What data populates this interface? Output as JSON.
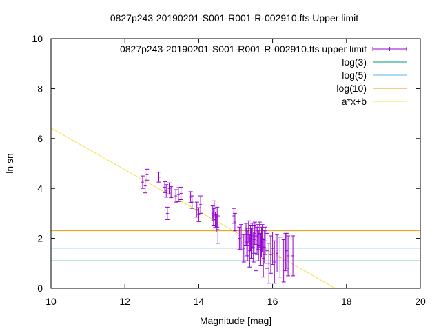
{
  "chart_data": {
    "type": "scatter",
    "title": "0827p243-20190201-S001-R001-R-002910.fts Upper limit",
    "xlabel": "Magnitude [mag]",
    "ylabel": "ln sn",
    "xlim": [
      10,
      20
    ],
    "ylim": [
      0,
      10
    ],
    "xticks": [
      "10",
      "12",
      "14",
      "16",
      "18",
      "20"
    ],
    "yticks": [
      "0",
      "2",
      "4",
      "6",
      "8",
      "10"
    ],
    "grid": false,
    "legend_position": "top-right",
    "colors": {
      "points": "#9400d3",
      "log3": "#009e73",
      "log5": "#56b4e9",
      "log10": "#e69f00",
      "fit": "#f0e442"
    },
    "series": [
      {
        "name": "0827p243-20190201-S001-R001-R-002910.fts upper limit",
        "kind": "errorbar",
        "points": [
          {
            "x": 12.48,
            "y": 4.25,
            "err": 0.25
          },
          {
            "x": 12.55,
            "y": 4.1,
            "err": 0.28
          },
          {
            "x": 12.6,
            "y": 4.55,
            "err": 0.22
          },
          {
            "x": 12.92,
            "y": 4.45,
            "err": 0.2
          },
          {
            "x": 13.08,
            "y": 4.05,
            "err": 0.22
          },
          {
            "x": 13.12,
            "y": 3.9,
            "err": 0.25
          },
          {
            "x": 13.15,
            "y": 3.0,
            "err": 0.25
          },
          {
            "x": 13.2,
            "y": 4.0,
            "err": 0.22
          },
          {
            "x": 13.25,
            "y": 3.85,
            "err": 0.22
          },
          {
            "x": 13.38,
            "y": 3.7,
            "err": 0.25
          },
          {
            "x": 13.45,
            "y": 3.75,
            "err": 0.28
          },
          {
            "x": 13.52,
            "y": 3.8,
            "err": 0.25
          },
          {
            "x": 13.78,
            "y": 3.65,
            "err": 0.22
          },
          {
            "x": 13.82,
            "y": 3.45,
            "err": 0.25
          },
          {
            "x": 13.95,
            "y": 3.15,
            "err": 0.3
          },
          {
            "x": 14.0,
            "y": 2.95,
            "err": 0.28
          },
          {
            "x": 14.05,
            "y": 3.35,
            "err": 0.35
          },
          {
            "x": 14.38,
            "y": 3.0,
            "err": 0.3
          },
          {
            "x": 14.4,
            "y": 2.85,
            "err": 0.35
          },
          {
            "x": 14.42,
            "y": 3.2,
            "err": 0.3
          },
          {
            "x": 14.45,
            "y": 2.75,
            "err": 0.3
          },
          {
            "x": 14.48,
            "y": 2.6,
            "err": 0.35
          },
          {
            "x": 14.5,
            "y": 2.85,
            "err": 0.4
          },
          {
            "x": 14.52,
            "y": 2.35,
            "err": 0.55
          },
          {
            "x": 14.95,
            "y": 2.9,
            "err": 0.3
          },
          {
            "x": 14.98,
            "y": 2.65,
            "err": 0.35
          },
          {
            "x": 15.1,
            "y": 2.0,
            "err": 0.45
          },
          {
            "x": 15.15,
            "y": 2.05,
            "err": 0.5
          },
          {
            "x": 15.22,
            "y": 1.6,
            "err": 0.55
          },
          {
            "x": 15.28,
            "y": 2.15,
            "err": 0.45
          },
          {
            "x": 15.3,
            "y": 1.85,
            "err": 0.55
          },
          {
            "x": 15.32,
            "y": 1.7,
            "err": 0.6
          },
          {
            "x": 15.35,
            "y": 2.25,
            "err": 0.45
          },
          {
            "x": 15.38,
            "y": 1.5,
            "err": 0.65
          },
          {
            "x": 15.4,
            "y": 2.0,
            "err": 0.5
          },
          {
            "x": 15.42,
            "y": 1.8,
            "err": 0.6
          },
          {
            "x": 15.45,
            "y": 2.1,
            "err": 0.5
          },
          {
            "x": 15.48,
            "y": 1.65,
            "err": 0.6
          },
          {
            "x": 15.5,
            "y": 1.95,
            "err": 0.55
          },
          {
            "x": 15.52,
            "y": 2.2,
            "err": 0.45
          },
          {
            "x": 15.55,
            "y": 1.4,
            "err": 0.7
          },
          {
            "x": 15.58,
            "y": 1.9,
            "err": 0.55
          },
          {
            "x": 15.6,
            "y": 2.05,
            "err": 0.5
          },
          {
            "x": 15.62,
            "y": 1.7,
            "err": 0.6
          },
          {
            "x": 15.65,
            "y": 2.15,
            "err": 0.5
          },
          {
            "x": 15.68,
            "y": 1.55,
            "err": 0.65
          },
          {
            "x": 15.7,
            "y": 1.85,
            "err": 0.6
          },
          {
            "x": 15.72,
            "y": 2.0,
            "err": 0.55
          },
          {
            "x": 15.75,
            "y": 1.2,
            "err": 0.75
          },
          {
            "x": 15.78,
            "y": 1.65,
            "err": 0.65
          },
          {
            "x": 15.8,
            "y": 1.9,
            "err": 0.55
          },
          {
            "x": 15.85,
            "y": 1.5,
            "err": 0.7
          },
          {
            "x": 15.9,
            "y": 1.0,
            "err": 0.8
          },
          {
            "x": 15.95,
            "y": 1.35,
            "err": 0.75
          },
          {
            "x": 16.0,
            "y": 1.6,
            "err": 0.65
          },
          {
            "x": 16.05,
            "y": 1.05,
            "err": 0.85
          },
          {
            "x": 16.12,
            "y": 1.4,
            "err": 0.75
          },
          {
            "x": 16.2,
            "y": 1.25,
            "err": 0.8
          },
          {
            "x": 16.3,
            "y": 1.1,
            "err": 0.85
          },
          {
            "x": 16.35,
            "y": 1.45,
            "err": 0.75
          },
          {
            "x": 16.38,
            "y": 1.5,
            "err": 0.7
          },
          {
            "x": 16.42,
            "y": 1.3,
            "err": 0.8
          },
          {
            "x": 16.55,
            "y": 1.3,
            "err": 0.8
          }
        ]
      },
      {
        "name": "log(3)",
        "kind": "hline",
        "y": 1.0986
      },
      {
        "name": "log(5)",
        "kind": "hline",
        "y": 1.6094
      },
      {
        "name": "log(10)",
        "kind": "hline",
        "y": 2.3026
      },
      {
        "name": "a*x+b",
        "kind": "line",
        "slope": -0.8333,
        "intercept": 14.75
      }
    ]
  }
}
